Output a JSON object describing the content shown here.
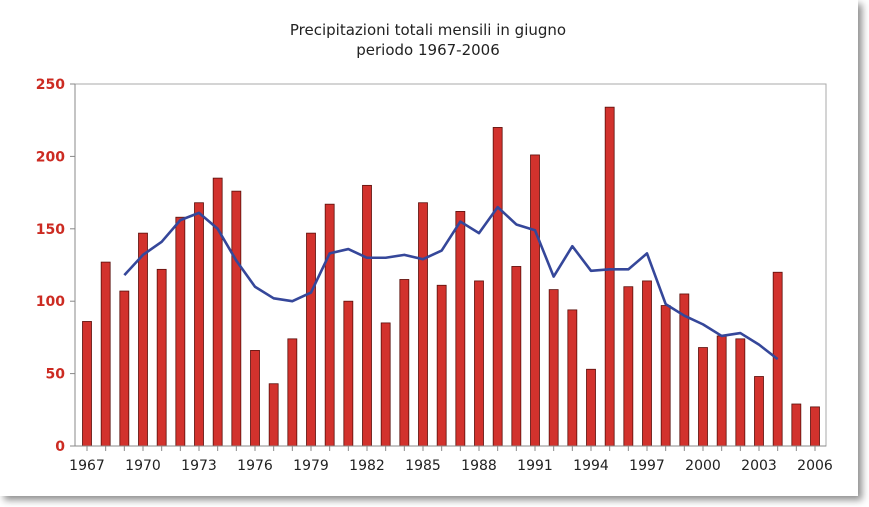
{
  "colors": {
    "bar_fill": "#d2322d",
    "bar_stroke": "#5a0e0a",
    "line": "#35479a",
    "ytick_text": "#cc2b22",
    "axis": "#888888",
    "frame_border": "#aaaaaa"
  },
  "chart_data": {
    "type": "bar",
    "title": "Precipitazioni totali mensili in giugno",
    "subtitle": "periodo 1967-2006",
    "xlabel": "",
    "ylabel": "",
    "ylim": [
      0,
      250
    ],
    "yticks": [
      0,
      50,
      100,
      150,
      200,
      250
    ],
    "xtick_labels": [
      "1967",
      "1970",
      "1973",
      "1976",
      "1979",
      "1982",
      "1985",
      "1988",
      "1991",
      "1994",
      "1997",
      "2000",
      "2003",
      "2006"
    ],
    "grid": false,
    "categories": [
      1967,
      1968,
      1969,
      1970,
      1971,
      1972,
      1973,
      1974,
      1975,
      1976,
      1977,
      1978,
      1979,
      1980,
      1981,
      1982,
      1983,
      1984,
      1985,
      1986,
      1987,
      1988,
      1989,
      1990,
      1991,
      1992,
      1993,
      1994,
      1995,
      1996,
      1997,
      1998,
      1999,
      2000,
      2001,
      2002,
      2003,
      2004,
      2005,
      2006
    ],
    "values": [
      86,
      127,
      107,
      147,
      122,
      158,
      168,
      185,
      176,
      66,
      43,
      74,
      147,
      167,
      100,
      180,
      85,
      115,
      168,
      111,
      162,
      114,
      220,
      124,
      201,
      108,
      94,
      53,
      234,
      110,
      114,
      97,
      105,
      68,
      76,
      74,
      48,
      120,
      29,
      27
    ],
    "trend": {
      "type": "line",
      "x": [
        1969,
        1970,
        1971,
        1972,
        1973,
        1974,
        1975,
        1976,
        1977,
        1978,
        1979,
        1980,
        1981,
        1982,
        1983,
        1984,
        1985,
        1986,
        1987,
        1988,
        1989,
        1990,
        1991,
        1992,
        1993,
        1994,
        1995,
        1996,
        1997,
        1998,
        1999,
        2000,
        2001,
        2002,
        2003,
        2004
      ],
      "values": [
        118,
        132,
        141,
        156,
        161,
        150,
        128,
        110,
        102,
        100,
        106,
        133,
        136,
        130,
        130,
        132,
        129,
        135,
        155,
        147,
        165,
        153,
        149,
        117,
        138,
        121,
        122,
        122,
        133,
        98,
        90,
        84,
        76,
        78,
        70,
        60
      ]
    }
  }
}
